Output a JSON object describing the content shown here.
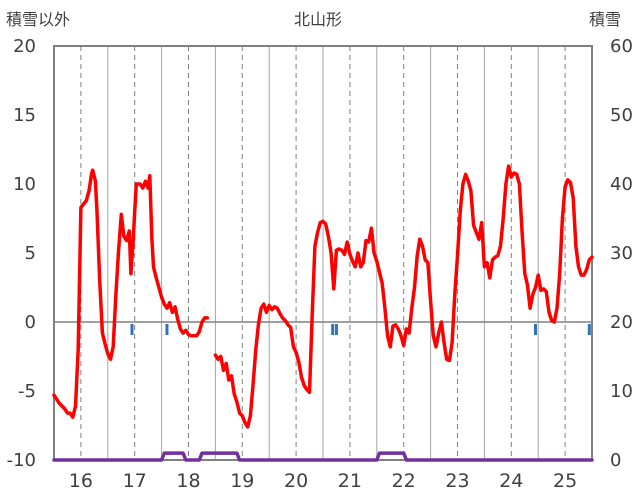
{
  "title": "北山形",
  "left_axis_label": "積雪以外",
  "right_axis_label": "積雪",
  "colors": {
    "temperature_line": "#ff0000",
    "snow_line": "#7030a0",
    "precip_marks": "#2e75b6",
    "axis": "#808080",
    "dashed_grid": "#808080"
  },
  "chart_data": {
    "type": "line",
    "title": "北山形",
    "ylabel_left": "積雪以外",
    "ylabel_right": "積雪",
    "ylim_left": [
      -10,
      20
    ],
    "ylim_right": [
      0,
      60
    ],
    "yticks_left": [
      "20",
      "15",
      "10",
      "5",
      "0",
      "-5",
      "-10"
    ],
    "yticks_right": [
      "60",
      "50",
      "40",
      "30",
      "20",
      "10",
      "0"
    ],
    "xlim": [
      15.5,
      25.5
    ],
    "xticks": [
      "16",
      "17",
      "18",
      "19",
      "20",
      "21",
      "22",
      "23",
      "24",
      "25"
    ],
    "grid": "vertical dashed at day boundaries and midpoints",
    "series": [
      {
        "axis": "left",
        "style": "red-line",
        "points": [
          [
            15.5,
            -5.3
          ],
          [
            15.6,
            -5.9
          ],
          [
            15.7,
            -6.3
          ],
          [
            15.75,
            -6.6
          ],
          [
            15.8,
            -6.6
          ],
          [
            15.85,
            -6.9
          ],
          [
            15.9,
            -6.1
          ],
          [
            15.95,
            -2.0
          ],
          [
            16.0,
            8.3
          ],
          [
            16.1,
            8.8
          ],
          [
            16.15,
            9.5
          ],
          [
            16.2,
            10.8
          ],
          [
            16.22,
            11.0
          ],
          [
            16.27,
            10.2
          ],
          [
            16.3,
            8.0
          ],
          [
            16.35,
            3.0
          ],
          [
            16.4,
            -0.8
          ],
          [
            16.45,
            -1.6
          ],
          [
            16.5,
            -2.3
          ],
          [
            16.55,
            -2.7
          ],
          [
            16.6,
            -1.8
          ],
          [
            16.65,
            2.0
          ],
          [
            16.7,
            5.2
          ],
          [
            16.75,
            7.8
          ],
          [
            16.8,
            6.2
          ],
          [
            16.85,
            5.9
          ],
          [
            16.9,
            6.6
          ],
          [
            16.93,
            3.5
          ],
          [
            16.97,
            5.8
          ],
          [
            17.0,
            8.0
          ],
          [
            17.03,
            10.0
          ],
          [
            17.1,
            10.0
          ],
          [
            17.15,
            9.7
          ],
          [
            17.2,
            10.2
          ],
          [
            17.25,
            9.7
          ],
          [
            17.28,
            10.6
          ],
          [
            17.32,
            6.0
          ],
          [
            17.35,
            4.0
          ],
          [
            17.4,
            3.2
          ],
          [
            17.45,
            2.5
          ],
          [
            17.5,
            1.8
          ],
          [
            17.55,
            1.3
          ],
          [
            17.6,
            1.0
          ],
          [
            17.65,
            1.4
          ],
          [
            17.7,
            0.7
          ],
          [
            17.75,
            1.1
          ],
          [
            17.8,
            0.2
          ],
          [
            17.85,
            -0.5
          ],
          [
            17.9,
            -0.8
          ],
          [
            17.95,
            -0.6
          ],
          [
            18.0,
            -0.9
          ],
          [
            18.05,
            -1.0
          ],
          [
            18.1,
            -1.0
          ],
          [
            18.15,
            -1.0
          ],
          [
            18.2,
            -0.7
          ],
          [
            18.25,
            0.0
          ],
          [
            18.3,
            0.3
          ],
          [
            18.35,
            0.3
          ],
          null,
          [
            18.5,
            -2.4
          ],
          [
            18.55,
            -2.7
          ],
          [
            18.6,
            -2.5
          ],
          [
            18.65,
            -3.5
          ],
          [
            18.7,
            -3.0
          ],
          [
            18.75,
            -4.2
          ],
          [
            18.8,
            -3.9
          ],
          [
            18.85,
            -5.2
          ],
          [
            18.9,
            -5.8
          ],
          [
            18.95,
            -6.6
          ],
          [
            19.0,
            -6.8
          ],
          [
            19.05,
            -7.3
          ],
          [
            19.1,
            -7.6
          ],
          [
            19.15,
            -6.8
          ],
          [
            19.2,
            -4.5
          ],
          [
            19.25,
            -2.0
          ],
          [
            19.3,
            -0.2
          ],
          [
            19.35,
            1.0
          ],
          [
            19.4,
            1.3
          ],
          [
            19.45,
            0.7
          ],
          [
            19.5,
            1.2
          ],
          [
            19.55,
            0.9
          ],
          [
            19.6,
            1.1
          ],
          [
            19.65,
            1.0
          ],
          [
            19.7,
            0.6
          ],
          [
            19.75,
            0.3
          ],
          [
            19.8,
            0.1
          ],
          [
            19.85,
            -0.2
          ],
          [
            19.9,
            -0.4
          ],
          [
            19.95,
            -1.8
          ],
          [
            20.0,
            -2.2
          ],
          [
            20.05,
            -2.9
          ],
          [
            20.1,
            -4.0
          ],
          [
            20.15,
            -4.6
          ],
          [
            20.2,
            -4.9
          ],
          [
            20.25,
            -5.1
          ],
          [
            20.3,
            0.5
          ],
          [
            20.35,
            5.5
          ],
          [
            20.4,
            6.5
          ],
          [
            20.45,
            7.2
          ],
          [
            20.5,
            7.3
          ],
          [
            20.55,
            7.1
          ],
          [
            20.6,
            6.2
          ],
          [
            20.65,
            5.0
          ],
          [
            20.7,
            2.4
          ],
          [
            20.75,
            5.2
          ],
          [
            20.8,
            5.3
          ],
          [
            20.85,
            5.2
          ],
          [
            20.9,
            4.9
          ],
          [
            20.95,
            5.8
          ],
          [
            21.0,
            4.9
          ],
          [
            21.05,
            4.4
          ],
          [
            21.1,
            4.0
          ],
          [
            21.15,
            5.0
          ],
          [
            21.2,
            4.0
          ],
          [
            21.25,
            4.3
          ],
          [
            21.3,
            5.9
          ],
          [
            21.35,
            5.8
          ],
          [
            21.4,
            6.8
          ],
          [
            21.45,
            5.0
          ],
          [
            21.5,
            4.4
          ],
          [
            21.55,
            3.6
          ],
          [
            21.6,
            2.8
          ],
          [
            21.65,
            1.0
          ],
          [
            21.7,
            -1.0
          ],
          [
            21.75,
            -1.8
          ],
          [
            21.8,
            -0.3
          ],
          [
            21.85,
            -0.2
          ],
          [
            21.9,
            -0.5
          ],
          [
            21.95,
            -1.0
          ],
          [
            22.0,
            -1.7
          ],
          [
            22.05,
            -0.5
          ],
          [
            22.1,
            -0.8
          ],
          [
            22.15,
            1.0
          ],
          [
            22.2,
            2.5
          ],
          [
            22.25,
            4.8
          ],
          [
            22.3,
            6.0
          ],
          [
            22.35,
            5.5
          ],
          [
            22.4,
            4.5
          ],
          [
            22.45,
            4.3
          ],
          [
            22.5,
            1.5
          ],
          [
            22.55,
            -1.0
          ],
          [
            22.6,
            -1.8
          ],
          [
            22.65,
            -0.8
          ],
          [
            22.7,
            0.0
          ],
          [
            22.75,
            -1.5
          ],
          [
            22.8,
            -2.7
          ],
          [
            22.85,
            -2.8
          ],
          [
            22.9,
            -1.5
          ],
          [
            22.95,
            2.0
          ],
          [
            23.0,
            4.8
          ],
          [
            23.05,
            8.0
          ],
          [
            23.1,
            10.0
          ],
          [
            23.15,
            10.7
          ],
          [
            23.2,
            10.2
          ],
          [
            23.25,
            9.5
          ],
          [
            23.3,
            7.0
          ],
          [
            23.35,
            6.5
          ],
          [
            23.4,
            6.0
          ],
          [
            23.45,
            7.2
          ],
          [
            23.5,
            4.0
          ],
          [
            23.55,
            4.3
          ],
          [
            23.6,
            3.2
          ],
          [
            23.65,
            4.5
          ],
          [
            23.7,
            4.7
          ],
          [
            23.75,
            4.8
          ],
          [
            23.8,
            5.5
          ],
          [
            23.85,
            7.5
          ],
          [
            23.9,
            10.0
          ],
          [
            23.95,
            11.3
          ],
          [
            24.0,
            10.5
          ],
          [
            24.05,
            10.8
          ],
          [
            24.1,
            10.7
          ],
          [
            24.15,
            10.0
          ],
          [
            24.2,
            6.5
          ],
          [
            24.25,
            3.5
          ],
          [
            24.3,
            2.7
          ],
          [
            24.35,
            1.0
          ],
          [
            24.4,
            2.0
          ],
          [
            24.45,
            2.5
          ],
          [
            24.5,
            3.4
          ],
          [
            24.55,
            2.3
          ],
          [
            24.6,
            2.4
          ],
          [
            24.65,
            2.2
          ],
          [
            24.7,
            0.7
          ],
          [
            24.75,
            0.1
          ],
          [
            24.8,
            0.0
          ],
          [
            24.85,
            1.0
          ],
          [
            24.9,
            3.5
          ],
          [
            24.95,
            7.5
          ],
          [
            25.0,
            9.8
          ],
          [
            25.05,
            10.3
          ],
          [
            25.1,
            10.1
          ],
          [
            25.15,
            9.0
          ],
          [
            25.2,
            5.5
          ],
          [
            25.25,
            4.0
          ],
          [
            25.3,
            3.4
          ],
          [
            25.35,
            3.4
          ],
          [
            25.4,
            3.8
          ],
          [
            25.45,
            4.5
          ],
          [
            25.5,
            4.7
          ]
        ]
      },
      {
        "axis": "right",
        "style": "purple-line",
        "points": [
          [
            15.5,
            0
          ],
          [
            17.5,
            0
          ],
          [
            17.55,
            1
          ],
          [
            17.9,
            1
          ],
          [
            17.95,
            0
          ],
          [
            18.2,
            0
          ],
          [
            18.25,
            1
          ],
          [
            18.9,
            1
          ],
          [
            18.95,
            0
          ],
          [
            21.5,
            0
          ],
          [
            21.55,
            1
          ],
          [
            22.0,
            1
          ],
          [
            22.05,
            0
          ],
          [
            25.5,
            0
          ]
        ]
      },
      {
        "axis": "left",
        "style": "blue-ticks",
        "x": [
          16.95,
          17.6,
          20.68,
          20.75,
          24.45,
          25.45
        ]
      }
    ]
  }
}
